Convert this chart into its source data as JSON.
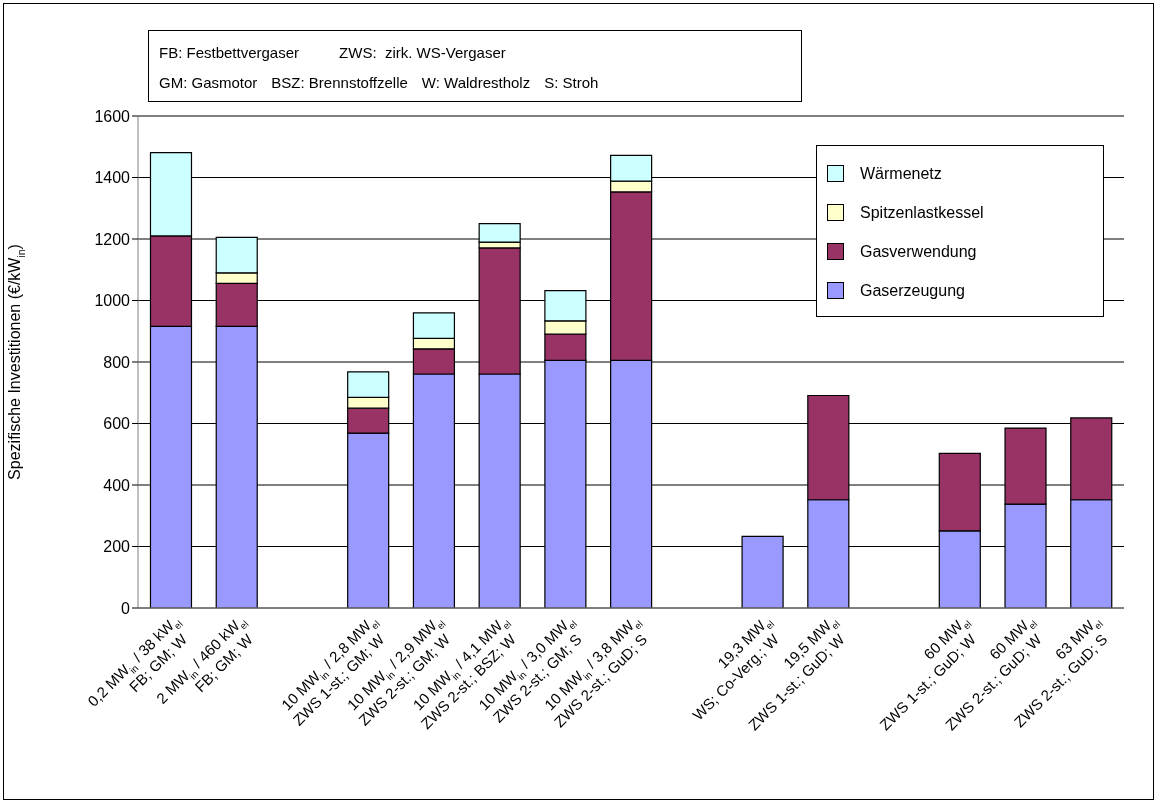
{
  "chart_data": {
    "type": "bar",
    "stacked": true,
    "ylabel": "Spezifische Investitionen (€/kW$_{in}$)",
    "annotations": [
      "FB: Festbettvergaser",
      "ZWS:  zirk. WS-Vergaser",
      "GM: Gasmotor",
      "BSZ: Brennstoffzelle",
      "W: Waldrestholz",
      "S: Stroh"
    ],
    "categories": [
      "0,2 MW$_{in}$ / 38 kW$_{el}$\nFB; GM; W",
      "2 MW$_{in}$ / 460 kW$_{el}$\nFB; GM; W",
      null,
      "10 MW$_{in}$ / 2,8 MW$_{el}$\nZWS 1-st.; GM; W",
      "10 MW$_{in}$ / 2,9 MW$_{el}$\nZWS 2-st.; GM; W",
      "10 MW$_{in}$ / 4,1 MW$_{el}$\nZWS 2-st.; BSZ; W",
      "10 MW$_{in}$ / 3,0 MW$_{el}$\nZWS 2-st.; GM; S",
      "10 MW$_{in}$ / 3,8 MW$_{el}$\nZWS 2-st.; GuD; S",
      null,
      "19,3 MW$_{el}$\nWS; Co-Verg.; W",
      "19,5 MW$_{el}$\nZWS 1-st.; GuD; W",
      null,
      "60 MW$_{el}$\nZWS 1-st.; GuD; W",
      "60 MW$_{el}$\nZWS 2-st.; GuD; W",
      "63 MW$_{el}$\nZWS 2-st.; GuD; S"
    ],
    "series": [
      {
        "name": "Gaserzeugung",
        "color": "#9999ff",
        "values": [
          916,
          916,
          null,
          569,
          761,
          761,
          805,
          805,
          null,
          233,
          352,
          null,
          251,
          338,
          352
        ]
      },
      {
        "name": "Gasverwendung",
        "color": "#993366",
        "values": [
          294,
          140,
          null,
          81,
          82,
          410,
          86,
          548,
          null,
          0,
          339,
          null,
          252,
          247,
          266
        ]
      },
      {
        "name": "Spitzenlastkessel",
        "color": "#ffffcc",
        "values": [
          0,
          34,
          null,
          35,
          34,
          19,
          43,
          35,
          null,
          0,
          0,
          null,
          0,
          0,
          0
        ]
      },
      {
        "name": "Wärmenetz",
        "color": "#ccffff",
        "values": [
          271,
          115,
          null,
          83,
          83,
          60,
          98,
          84,
          null,
          0,
          0,
          null,
          0,
          0,
          0
        ]
      }
    ],
    "ylim": [
      0,
      1600
    ],
    "yticks": [
      0,
      200,
      400,
      600,
      800,
      1000,
      1200,
      1400,
      1600
    ],
    "grid": "y",
    "legend": "top right"
  }
}
